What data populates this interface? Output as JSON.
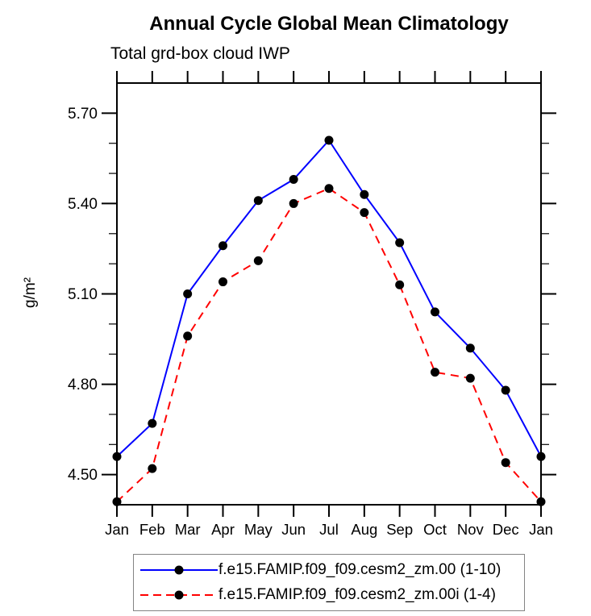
{
  "chart_data": {
    "type": "line",
    "title": "Annual Cycle Global Mean Climatology",
    "subtitle": "Total grd-box cloud IWP",
    "ylabel": "g/m²",
    "xlabel": "",
    "categories": [
      "Jan",
      "Feb",
      "Mar",
      "Apr",
      "May",
      "Jun",
      "Jul",
      "Aug",
      "Sep",
      "Oct",
      "Nov",
      "Dec",
      "Jan"
    ],
    "series": [
      {
        "name": "f.e15.FAMIP.f09_f09.cesm2_zm.00 (1-10)",
        "color": "#0000ff",
        "style": "solid",
        "values": [
          4.56,
          4.67,
          5.1,
          5.26,
          5.41,
          5.48,
          5.61,
          5.43,
          5.27,
          5.04,
          4.92,
          4.78,
          4.56
        ]
      },
      {
        "name": "f.e15.FAMIP.f09_f09.cesm2_zm.00i (1-4)",
        "color": "#ff0000",
        "style": "dashed",
        "values": [
          4.41,
          4.52,
          4.96,
          5.14,
          5.21,
          5.4,
          5.45,
          5.37,
          5.13,
          4.84,
          4.82,
          4.54,
          4.41
        ]
      }
    ],
    "marker": {
      "shape": "filled-circle",
      "color": "#000000",
      "diameter": 11
    },
    "ylim": [
      4.4,
      5.8
    ],
    "yticks_major": [
      4.5,
      4.8,
      5.1,
      5.4,
      5.7
    ],
    "ytick_labels": [
      "4.50",
      "4.80",
      "5.10",
      "5.40",
      "5.70"
    ],
    "yticks_minor": [
      4.6,
      4.7,
      4.9,
      5.0,
      5.2,
      5.3,
      5.5,
      5.6
    ],
    "grid": false,
    "axis_color": "#000000",
    "legend": {
      "position": "bottom-center",
      "border_color": "#848484"
    }
  }
}
